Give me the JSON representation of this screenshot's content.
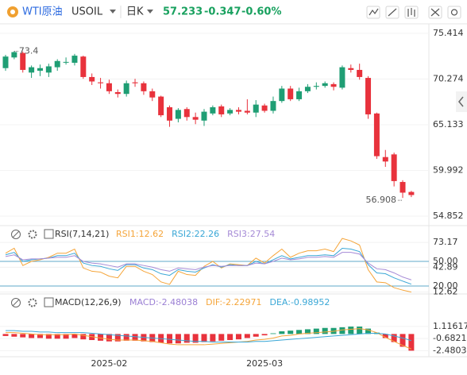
{
  "header": {
    "name": "WTI原油",
    "symbol": "USOIL",
    "period": "日K",
    "price": "57.233",
    "change": "-0.347",
    "change_pct": "-0.60%"
  },
  "chart_data": [
    {
      "type": "candlestick",
      "open": [
        71.5,
        72.7,
        73.2,
        71.0,
        71.2,
        71.0,
        71.6,
        72.2,
        72.1,
        72.8,
        70.5,
        69.9,
        69.8,
        68.8,
        68.6,
        69.9,
        69.8,
        68.9,
        68.3,
        67.1,
        65.8,
        66.9,
        66.0,
        65.6,
        66.4,
        67.2,
        66.4,
        66.8,
        66.7,
        66.5,
        67.3,
        66.7,
        67.8,
        69.2,
        68.0,
        68.9,
        69.4,
        69.5,
        69.7,
        69.3,
        71.5,
        71.3,
        70.4,
        66.4,
        61.5,
        61.8,
        58.7,
        57.58
      ],
      "high": [
        73.0,
        73.4,
        73.358,
        71.8,
        71.9,
        72.0,
        72.5,
        72.7,
        73.1,
        72.9,
        70.9,
        70.4,
        70.2,
        69.1,
        70.1,
        70.3,
        70.0,
        69.2,
        68.4,
        67.3,
        67.0,
        67.1,
        66.5,
        66.9,
        67.3,
        67.4,
        67.0,
        67.1,
        68.0,
        67.9,
        67.5,
        68.3,
        69.5,
        69.5,
        69.3,
        69.7,
        69.9,
        70.0,
        69.9,
        71.8,
        71.9,
        72.0,
        70.6,
        66.5,
        62.3,
        62.0,
        58.9,
        57.7
      ],
      "low": [
        71.2,
        72.5,
        71.0,
        70.4,
        70.6,
        70.5,
        71.2,
        71.9,
        71.8,
        70.3,
        69.6,
        69.2,
        68.6,
        68.2,
        68.3,
        69.4,
        68.5,
        67.8,
        66.0,
        64.9,
        65.4,
        65.6,
        65.2,
        65.0,
        66.2,
        66.0,
        66.2,
        66.3,
        66.3,
        66.0,
        66.5,
        66.4,
        67.6,
        67.8,
        67.8,
        68.7,
        69.1,
        69.3,
        69.0,
        69.1,
        71.0,
        70.2,
        65.8,
        61.3,
        60.4,
        58.2,
        56.908,
        57.0
      ],
      "close": [
        72.8,
        73.3,
        71.3,
        71.6,
        71.5,
        71.7,
        72.3,
        72.2,
        72.9,
        70.5,
        70.0,
        69.8,
        68.9,
        68.6,
        69.8,
        69.8,
        68.9,
        68.2,
        66.2,
        65.6,
        66.8,
        66.0,
        65.7,
        66.6,
        67.1,
        66.3,
        66.8,
        66.6,
        66.5,
        67.4,
        66.7,
        67.8,
        69.2,
        68.0,
        68.9,
        69.4,
        69.5,
        69.8,
        69.4,
        71.6,
        71.3,
        70.5,
        66.3,
        61.6,
        61.0,
        58.8,
        57.5,
        57.233
      ],
      "ylim": [
        53.97,
        76.3
      ],
      "yticks": [
        75.414,
        70.274,
        65.133,
        59.992,
        54.852
      ],
      "up_color": "#1f9e74",
      "down_color": "#e8323c",
      "grid": true
    },
    {
      "type": "line",
      "title": "RSI(7,14,21)",
      "series": [
        {
          "name": "RSI1:12.62",
          "color": "#f5a53a",
          "values": [
            60,
            66,
            45,
            50,
            52,
            55,
            60,
            60,
            65,
            42,
            38,
            37,
            32,
            30,
            44,
            44,
            38,
            34,
            25,
            22,
            38,
            34,
            33,
            44,
            50,
            42,
            47,
            46,
            45,
            54,
            48,
            57,
            65,
            55,
            60,
            63,
            63,
            65,
            62,
            78,
            75,
            70,
            40,
            25,
            24,
            18,
            15,
            12.62
          ]
        },
        {
          "name": "RSI2:22.26",
          "color": "#3aa7d6",
          "values": [
            58,
            61,
            50,
            52,
            53,
            54,
            57,
            57,
            60,
            48,
            45,
            44,
            41,
            39,
            46,
            46,
            42,
            40,
            35,
            33,
            40,
            38,
            37,
            42,
            46,
            43,
            46,
            45,
            45,
            50,
            47,
            52,
            57,
            53,
            55,
            57,
            57,
            58,
            57,
            66,
            65,
            62,
            46,
            36,
            35,
            30,
            26,
            22.26
          ]
        },
        {
          "name": "RSI3:27.54",
          "color": "#a58ad6",
          "values": [
            56,
            58,
            52,
            53,
            53,
            54,
            55,
            55,
            57,
            50,
            48,
            47,
            45,
            43,
            47,
            47,
            45,
            43,
            40,
            38,
            42,
            41,
            40,
            43,
            45,
            44,
            45,
            45,
            45,
            48,
            47,
            50,
            54,
            52,
            53,
            55,
            55,
            56,
            55,
            61,
            61,
            59,
            48,
            41,
            40,
            36,
            31,
            27.54
          ]
        }
      ],
      "ylim": [
        12.26,
        75.2
      ],
      "yticks": [
        73.17,
        {
          "value": 50,
          "label": "50.00"
        },
        42.89,
        {
          "value": 20,
          "label": "20.00"
        },
        12.62
      ]
    },
    {
      "type": "macd",
      "title": "MACD(12,26,9)",
      "series": [
        {
          "name": "MACD:-2.48038",
          "color": "#9b7fd4",
          "kind": "bar",
          "values": [
            -0.3,
            -0.4,
            -0.5,
            -0.6,
            -0.6,
            -0.7,
            -0.7,
            -0.7,
            -0.6,
            -0.8,
            -0.9,
            -1.0,
            -1.1,
            -1.1,
            -1.0,
            -1.0,
            -1.1,
            -1.2,
            -1.3,
            -1.4,
            -1.4,
            -1.3,
            -1.3,
            -1.2,
            -1.1,
            -1.0,
            -0.9,
            -0.8,
            -0.6,
            -0.4,
            -0.2,
            0.1,
            0.4,
            0.5,
            0.6,
            0.7,
            0.8,
            0.9,
            0.9,
            1.0,
            1.1,
            1.1,
            0.8,
            0.2,
            -0.6,
            -1.2,
            -1.9,
            -2.48038
          ]
        },
        {
          "name": "DIF:-2.22971",
          "color": "#f5a53a",
          "kind": "line",
          "values": [
            0.2,
            0.2,
            0.1,
            0.0,
            -0.1,
            -0.1,
            -0.1,
            -0.1,
            0.0,
            -0.2,
            -0.4,
            -0.6,
            -0.8,
            -0.9,
            -0.9,
            -0.9,
            -1.0,
            -1.1,
            -1.3,
            -1.5,
            -1.6,
            -1.6,
            -1.6,
            -1.6,
            -1.5,
            -1.4,
            -1.3,
            -1.2,
            -1.1,
            -0.9,
            -0.8,
            -0.6,
            -0.3,
            -0.2,
            0.0,
            0.1,
            0.2,
            0.3,
            0.4,
            0.6,
            0.7,
            0.8,
            0.6,
            0.2,
            -0.5,
            -1.1,
            -1.7,
            -2.22971
          ]
        },
        {
          "name": "DEA:-0.98952",
          "color": "#3aa7d6",
          "kind": "line",
          "values": [
            0.5,
            0.5,
            0.4,
            0.4,
            0.3,
            0.3,
            0.2,
            0.2,
            0.2,
            0.2,
            0.1,
            0.0,
            -0.1,
            -0.2,
            -0.3,
            -0.4,
            -0.5,
            -0.6,
            -0.7,
            -0.8,
            -0.9,
            -1.0,
            -1.1,
            -1.1,
            -1.2,
            -1.2,
            -1.2,
            -1.2,
            -1.2,
            -1.1,
            -1.1,
            -1.0,
            -0.9,
            -0.8,
            -0.7,
            -0.6,
            -0.5,
            -0.4,
            -0.3,
            -0.2,
            -0.1,
            0.0,
            0.1,
            0.1,
            0.0,
            -0.3,
            -0.6,
            -0.98952
          ]
        }
      ],
      "up_color": "#1f9e74",
      "down_color": "#e8323c",
      "ylim": [
        -3.26,
        3.35
      ],
      "yticks": [
        1.11617,
        -0.68211,
        -2.48038
      ],
      "categories": [
        null,
        null,
        null,
        null,
        null,
        null,
        null,
        null,
        null,
        null,
        null,
        null,
        "2025-02",
        null,
        null,
        null,
        null,
        null,
        null,
        null,
        null,
        null,
        null,
        null,
        null,
        null,
        null,
        null,
        null,
        null,
        "2025-03",
        null,
        null,
        null,
        null,
        null,
        null,
        null,
        null,
        null,
        null,
        null,
        null,
        null,
        null,
        null,
        null,
        null
      ]
    }
  ]
}
